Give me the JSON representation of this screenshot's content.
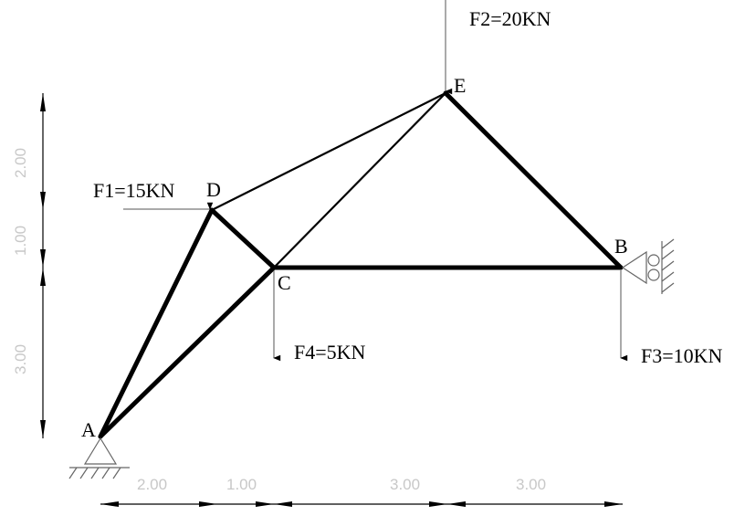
{
  "nodes": {
    "A": "A",
    "B": "B",
    "C": "C",
    "D": "D",
    "E": "E"
  },
  "loads": {
    "F1": "F1=15KN",
    "F2": "F2=20KN",
    "F3": "F3=10KN",
    "F4": "F4=5KN"
  },
  "dimensions": {
    "horizontal": [
      "2.00",
      "1.00",
      "3.00",
      "3.00"
    ],
    "vertical": [
      "2.00",
      "1.00",
      "3.00"
    ]
  },
  "supports": {
    "A": "pinned",
    "B": "roller"
  }
}
